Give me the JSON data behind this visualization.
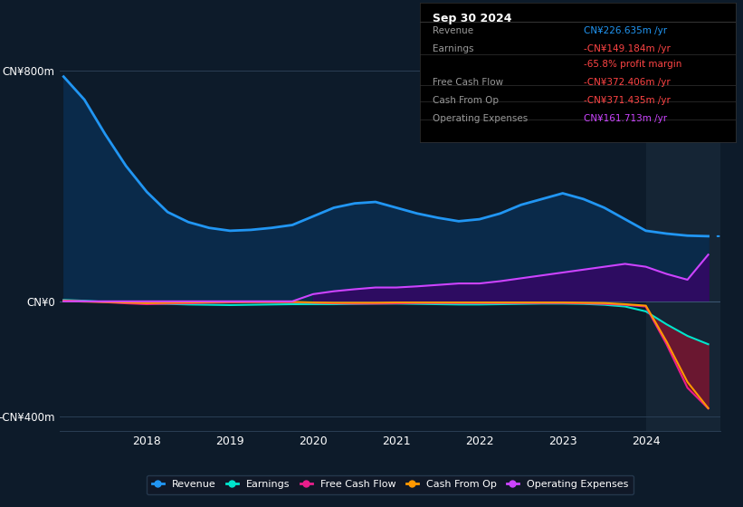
{
  "bg_color": "#0d1b2a",
  "plot_bg_color": "#0d1b2a",
  "title_box": {
    "date": "Sep 30 2024",
    "rows": [
      {
        "label": "Revenue",
        "value": "CN¥226.635m /yr",
        "value_color": "#2196f3"
      },
      {
        "label": "Earnings",
        "value": "-CN¥149.184m /yr",
        "value_color": "#ff4444"
      },
      {
        "label": "",
        "value": "-65.8% profit margin",
        "value_color": "#ff4444"
      },
      {
        "label": "Free Cash Flow",
        "value": "-CN¥372.406m /yr",
        "value_color": "#ff4444"
      },
      {
        "label": "Cash From Op",
        "value": "-CN¥371.435m /yr",
        "value_color": "#ff4444"
      },
      {
        "label": "Operating Expenses",
        "value": "CN¥161.713m /yr",
        "value_color": "#cc44ff"
      }
    ]
  },
  "years": [
    2017.0,
    2017.25,
    2017.5,
    2017.75,
    2018.0,
    2018.25,
    2018.5,
    2018.75,
    2019.0,
    2019.25,
    2019.5,
    2019.75,
    2020.0,
    2020.25,
    2020.5,
    2020.75,
    2021.0,
    2021.25,
    2021.5,
    2021.75,
    2022.0,
    2022.25,
    2022.5,
    2022.75,
    2023.0,
    2023.25,
    2023.5,
    2023.75,
    2024.0,
    2024.25,
    2024.5,
    2024.75
  ],
  "revenue": [
    780,
    700,
    580,
    470,
    380,
    310,
    275,
    255,
    245,
    248,
    255,
    265,
    295,
    325,
    340,
    345,
    325,
    305,
    290,
    278,
    285,
    305,
    335,
    355,
    375,
    355,
    325,
    285,
    245,
    235,
    228,
    226
  ],
  "earnings": [
    5,
    2,
    -2,
    -5,
    -8,
    -9,
    -11,
    -12,
    -13,
    -12,
    -11,
    -10,
    -10,
    -10,
    -9,
    -8,
    -8,
    -9,
    -10,
    -11,
    -11,
    -10,
    -9,
    -8,
    -8,
    -9,
    -12,
    -18,
    -35,
    -80,
    -120,
    -149
  ],
  "free_cash_flow": [
    3,
    0,
    -3,
    -7,
    -10,
    -8,
    -7,
    -5,
    -4,
    -3,
    -3,
    -3,
    -5,
    -7,
    -8,
    -8,
    -7,
    -6,
    -6,
    -6,
    -6,
    -6,
    -6,
    -6,
    -6,
    -7,
    -9,
    -12,
    -18,
    -150,
    -300,
    -372
  ],
  "cash_from_op": [
    1,
    -1,
    -2,
    -4,
    -6,
    -5,
    -4,
    -3,
    -2,
    -2,
    -2,
    -2,
    -4,
    -5,
    -5,
    -5,
    -4,
    -4,
    -4,
    -4,
    -4,
    -4,
    -4,
    -4,
    -4,
    -5,
    -6,
    -10,
    -15,
    -140,
    -280,
    -371
  ],
  "op_expenses": [
    0,
    0,
    0,
    0,
    0,
    0,
    0,
    0,
    0,
    0,
    0,
    0,
    25,
    35,
    42,
    48,
    48,
    52,
    57,
    62,
    62,
    70,
    80,
    90,
    100,
    110,
    120,
    130,
    120,
    95,
    75,
    162
  ],
  "highlight_start": 2024.0,
  "ylim": [
    -450,
    870
  ],
  "yticks": [
    -400,
    0,
    800
  ],
  "ytick_labels": [
    "-CN¥400m",
    "CN¥0",
    "CN¥800m"
  ],
  "xtick_vals": [
    2018,
    2019,
    2020,
    2021,
    2022,
    2023,
    2024
  ],
  "colors": {
    "revenue": "#2196f3",
    "revenue_fill": "#0a2a4a",
    "earnings": "#00e5cc",
    "free_cash_flow": "#e91e8c",
    "cash_from_op": "#ff9800",
    "op_expenses": "#cc44ff",
    "op_expenses_fill": "#3d006b"
  },
  "legend": [
    {
      "label": "Revenue",
      "color": "#2196f3"
    },
    {
      "label": "Earnings",
      "color": "#00e5cc"
    },
    {
      "label": "Free Cash Flow",
      "color": "#e91e8c"
    },
    {
      "label": "Cash From Op",
      "color": "#ff9800"
    },
    {
      "label": "Operating Expenses",
      "color": "#cc44ff"
    }
  ]
}
